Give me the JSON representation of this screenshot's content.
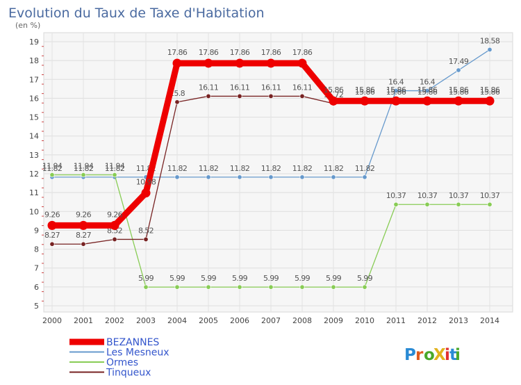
{
  "chart_data": {
    "type": "line",
    "title": "Evolution du Taux de Taxe d'Habitation",
    "ylabel": "(en %)",
    "xlabel": "",
    "x": [
      "2000",
      "2001",
      "2002",
      "2003",
      "2004",
      "2005",
      "2006",
      "2007",
      "2008",
      "2009",
      "2010",
      "2011",
      "2012",
      "2013",
      "2014"
    ],
    "ylim": [
      5,
      19
    ],
    "yticks": [
      "5",
      "6",
      "7",
      "8",
      "9",
      "10",
      "11",
      "12",
      "13",
      "14",
      "15",
      "16",
      "17",
      "18",
      "19"
    ],
    "grid": true,
    "legend_position": "bottom-left",
    "series": [
      {
        "name": "BEZANNES",
        "color": "#ee0000",
        "values": [
          9.26,
          9.26,
          9.26,
          10.98,
          17.86,
          17.86,
          17.86,
          17.86,
          17.86,
          15.86,
          15.86,
          15.86,
          15.86,
          15.86,
          15.86
        ],
        "labels": [
          "9.26",
          "9.26",
          "9.26",
          "10.98",
          "17.86",
          "17.86",
          "17.86",
          "17.86",
          "17.86",
          "15.86",
          "15.86",
          "15.86",
          "15.86",
          "15.86",
          "15.86"
        ]
      },
      {
        "name": "Les Mesneux",
        "color": "#6699cc",
        "values": [
          11.82,
          11.82,
          11.82,
          11.82,
          11.82,
          11.82,
          11.82,
          11.82,
          11.82,
          11.82,
          11.82,
          16.4,
          16.4,
          17.49,
          18.58
        ],
        "labels": [
          "11.82",
          "11.82",
          "11.82",
          "11.82",
          "11.82",
          "11.82",
          "11.82",
          "11.82",
          "11.82",
          "11.82",
          "11.82",
          "16.4",
          "16.4",
          "17.49",
          "18.58"
        ]
      },
      {
        "name": "Ormes",
        "color": "#88cc55",
        "values": [
          11.94,
          11.94,
          11.94,
          5.99,
          5.99,
          5.99,
          5.99,
          5.99,
          5.99,
          5.99,
          5.99,
          10.37,
          10.37,
          10.37,
          10.37
        ],
        "labels": [
          "11.94",
          "11.94",
          "11.94",
          "5.99",
          "5.99",
          "5.99",
          "5.99",
          "5.99",
          "5.99",
          "5.99",
          "5.99",
          "10.37",
          "10.37",
          "10.37",
          "10.37"
        ]
      },
      {
        "name": "Tinqueux",
        "color": "#772222",
        "values": [
          8.27,
          8.27,
          8.52,
          8.52,
          15.8,
          16.11,
          16.11,
          16.11,
          16.11,
          15.72,
          15.86,
          15.86,
          15.86,
          15.86,
          15.86
        ],
        "labels": [
          "8.27",
          "8.27",
          "8.52",
          "8.52",
          "15.8",
          "16.11",
          "16.11",
          "16.11",
          "16.11",
          "15.72",
          "15.86",
          "15.86",
          "15.86",
          "15.86",
          "15.86"
        ]
      }
    ]
  },
  "brand": {
    "text": "ProXiti"
  }
}
